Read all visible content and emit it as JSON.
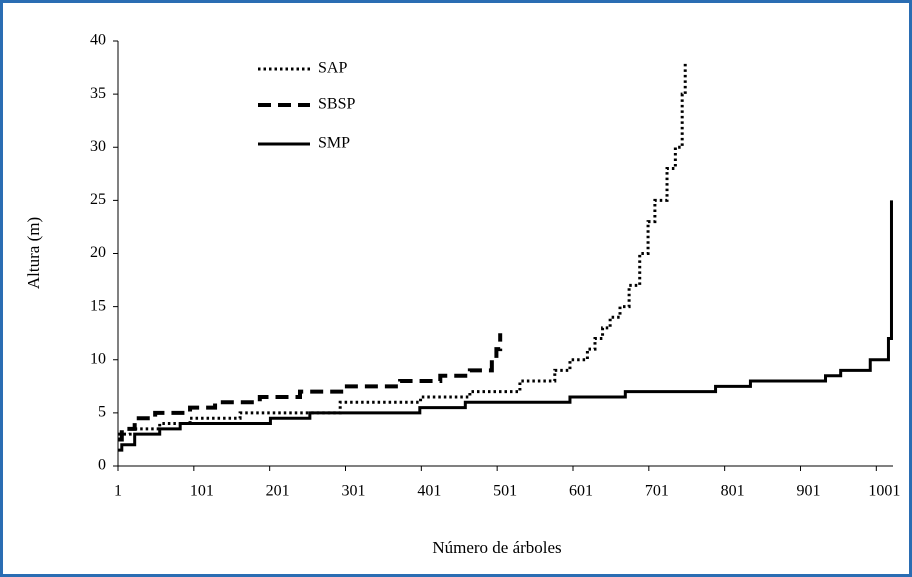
{
  "chart_data": {
    "type": "step",
    "x_label": "Número de árboles",
    "y_label": "Altura (m)",
    "xlim": [
      1,
      1023
    ],
    "ylim": [
      0,
      40
    ],
    "xticks": [
      1,
      101,
      201,
      301,
      401,
      501,
      601,
      701,
      801,
      901,
      1001
    ],
    "yticks": [
      0,
      5,
      10,
      15,
      20,
      25,
      30,
      35,
      40
    ],
    "legend": "top-left",
    "series": [
      {
        "name": "SAP",
        "color": "#000000",
        "style": "dotted",
        "x": [
          1,
          17,
          56,
          96,
          162,
          294,
          400,
          465,
          531,
          577,
          597,
          620,
          630,
          640,
          650,
          663,
          675,
          689,
          700,
          709,
          725,
          736,
          745,
          749
        ],
        "values": [
          3,
          3.5,
          4,
          4.5,
          5,
          6,
          6.5,
          7,
          8,
          9,
          10,
          11,
          12,
          13,
          14,
          15,
          17,
          20,
          23,
          25,
          28,
          30,
          35,
          38
        ]
      },
      {
        "name": "SBSP",
        "color": "#000000",
        "style": "dashed",
        "x": [
          1,
          6,
          23,
          50,
          96,
          129,
          188,
          241,
          300,
          373,
          426,
          465,
          494,
          500,
          505
        ],
        "values": [
          2.5,
          3.5,
          4.5,
          5,
          5.5,
          6,
          6.5,
          7,
          7.5,
          8,
          8.5,
          9,
          10,
          11,
          12.5
        ]
      },
      {
        "name": "SMP",
        "color": "#000000",
        "style": "solid",
        "x": [
          1,
          6,
          23,
          56,
          83,
          202,
          254,
          399,
          459,
          597,
          670,
          789,
          835,
          934,
          954,
          993,
          1017,
          1021
        ],
        "values": [
          1.5,
          2,
          3,
          3.5,
          4,
          4.5,
          5,
          5.5,
          6,
          6.5,
          7,
          7.5,
          8,
          8.5,
          9,
          10,
          12,
          25
        ]
      }
    ]
  }
}
